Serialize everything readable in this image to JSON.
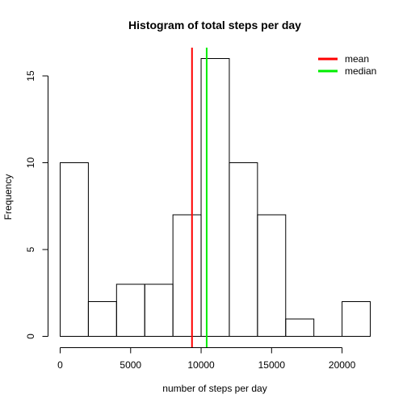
{
  "chart_data": {
    "type": "bar",
    "title": "Histogram of total steps per day",
    "xlabel": "number of steps per day",
    "ylabel": "Frequency",
    "bins": [
      {
        "from": 0,
        "to": 2000,
        "count": 10
      },
      {
        "from": 2000,
        "to": 4000,
        "count": 2
      },
      {
        "from": 4000,
        "to": 6000,
        "count": 3
      },
      {
        "from": 6000,
        "to": 8000,
        "count": 3
      },
      {
        "from": 8000,
        "to": 10000,
        "count": 7
      },
      {
        "from": 10000,
        "to": 12000,
        "count": 16
      },
      {
        "from": 12000,
        "to": 14000,
        "count": 10
      },
      {
        "from": 14000,
        "to": 16000,
        "count": 7
      },
      {
        "from": 16000,
        "to": 18000,
        "count": 1
      },
      {
        "from": 18000,
        "to": 20000,
        "count": 0
      },
      {
        "from": 20000,
        "to": 22000,
        "count": 2
      }
    ],
    "xlim": [
      0,
      22000
    ],
    "ylim": [
      0,
      16
    ],
    "x_ticks": [
      0,
      5000,
      10000,
      15000,
      20000
    ],
    "y_ticks": [
      0,
      5,
      10,
      15
    ],
    "vlines": [
      {
        "name": "mean",
        "value": 9354,
        "color": "#ff0000"
      },
      {
        "name": "median",
        "value": 10395,
        "color": "#00ee00"
      }
    ],
    "legend_position": "top-right",
    "grid": false
  }
}
